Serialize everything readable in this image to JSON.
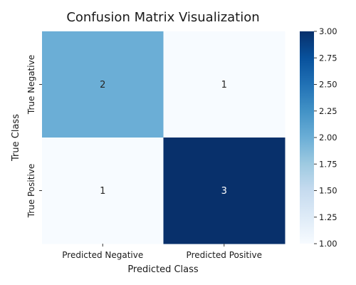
{
  "chart_data": {
    "type": "heatmap",
    "title": "Confusion Matrix Visualization",
    "xlabel": "Predicted Class",
    "ylabel": "True Class",
    "x_categories": [
      "Predicted Negative",
      "Predicted Positive"
    ],
    "y_categories": [
      "True Negative",
      "True Positive"
    ],
    "values": [
      [
        2,
        1
      ],
      [
        1,
        3
      ]
    ],
    "colormap": "Blues",
    "colorbar": {
      "range": [
        1.0,
        3.0
      ],
      "ticks": [
        "1.00",
        "1.25",
        "1.50",
        "1.75",
        "2.00",
        "2.25",
        "2.50",
        "2.75",
        "3.00"
      ]
    },
    "grid": false
  }
}
